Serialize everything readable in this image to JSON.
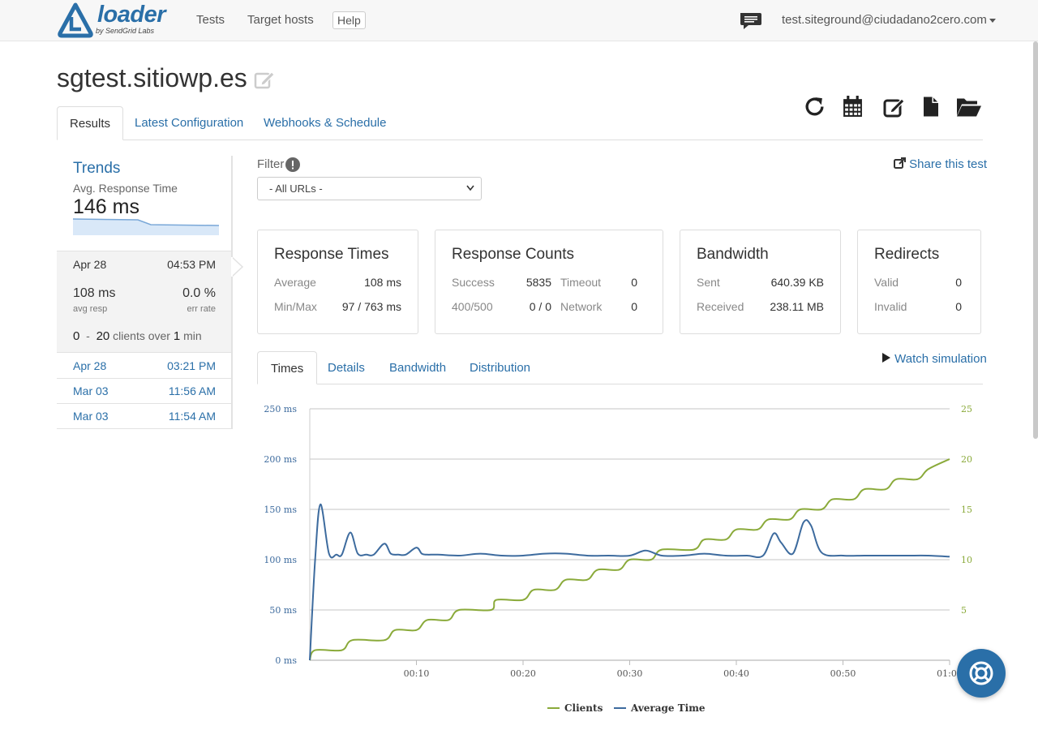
{
  "header": {
    "brand": "loader",
    "brand_tagline": "by SendGrid Labs",
    "nav": [
      "Tests",
      "Target hosts"
    ],
    "help_label": "Help",
    "user_email": "test.siteground@ciudadano2cero.com"
  },
  "page": {
    "title": "sgtest.sitiowp.es",
    "tabs": [
      {
        "label": "Results",
        "active": true
      },
      {
        "label": "Latest Configuration",
        "active": false
      },
      {
        "label": "Webhooks & Schedule",
        "active": false
      }
    ],
    "toolbar_icons": [
      "refresh-icon",
      "calendar-icon",
      "edit-icon",
      "file-icon",
      "folder-open-icon"
    ]
  },
  "trends": {
    "title": "Trends",
    "subtitle": "Avg. Response Time",
    "value": "146 ms"
  },
  "runs": {
    "active": {
      "date": "Apr 28",
      "time": "04:53 PM",
      "avg_resp": "108 ms",
      "avg_resp_label": "avg resp",
      "err_rate": "0.0 %",
      "err_rate_label": "err rate",
      "clients_from": "0",
      "clients_sep": "-",
      "clients_to": "20",
      "clients_over": "clients over",
      "duration": "1",
      "duration_unit": "min"
    },
    "others": [
      {
        "date": "Apr 28",
        "time": "03:21 PM"
      },
      {
        "date": "Mar 03",
        "time": "11:56 AM"
      },
      {
        "date": "Mar 03",
        "time": "11:54 AM"
      }
    ]
  },
  "filter": {
    "label": "Filter",
    "selected": "- All URLs -",
    "share_label": "Share this test"
  },
  "cards": {
    "response_times": {
      "title": "Response Times",
      "average_label": "Average",
      "average": "108 ms",
      "minmax_label": "Min/Max",
      "minmax": "97 / 763 ms"
    },
    "response_counts": {
      "title": "Response Counts",
      "success_label": "Success",
      "success": "5835",
      "timeout_label": "Timeout",
      "timeout": "0",
      "errors_label": "400/500",
      "errors": "0 / 0",
      "network_label": "Network",
      "network": "0"
    },
    "bandwidth": {
      "title": "Bandwidth",
      "sent_label": "Sent",
      "sent": "640.39 KB",
      "received_label": "Received",
      "received": "238.11 MB"
    },
    "redirects": {
      "title": "Redirects",
      "valid_label": "Valid",
      "valid": "0",
      "invalid_label": "Invalid",
      "invalid": "0"
    }
  },
  "chart_tabs": [
    {
      "label": "Times",
      "active": true
    },
    {
      "label": "Details",
      "active": false
    },
    {
      "label": "Bandwidth",
      "active": false
    },
    {
      "label": "Distribution",
      "active": false
    }
  ],
  "watch_label": "Watch simulation",
  "colors": {
    "link": "#2a6fa8",
    "clients": "#8aaa3a",
    "avg_time": "#3d6b9e",
    "help_bubble": "#2a6fa8"
  },
  "chart_data": {
    "type": "line",
    "x_ticks": [
      "00:10",
      "00:20",
      "00:30",
      "00:40",
      "00:50",
      "01:00"
    ],
    "x_range": [
      0,
      60
    ],
    "y_left_ticks": [
      "0 ms",
      "50 ms",
      "100 ms",
      "150 ms",
      "200 ms",
      "250 ms"
    ],
    "y_left_range": [
      0,
      250
    ],
    "y_right_ticks": [
      "5",
      "10",
      "15",
      "20",
      "25"
    ],
    "y_right_range": [
      0,
      25
    ],
    "grid": true,
    "legend": "bottom",
    "series": [
      {
        "name": "Clients",
        "axis": "right",
        "x": [
          0,
          0.5,
          3,
          4,
          7,
          8,
          10,
          11,
          13,
          14,
          17,
          17.5,
          20,
          21,
          23,
          24,
          26,
          27,
          29,
          30,
          32,
          33,
          36,
          37,
          39,
          40,
          42,
          43,
          45,
          46,
          48,
          49,
          51,
          52,
          54,
          55,
          57,
          58,
          60
        ],
        "y": [
          0,
          1,
          1,
          2,
          2,
          3,
          3,
          4,
          4,
          5,
          5,
          6,
          6,
          7,
          7,
          8,
          8,
          9,
          9,
          10,
          10,
          11,
          11,
          12,
          12,
          13,
          13,
          14,
          14,
          15,
          15,
          16,
          16,
          17,
          17,
          18,
          18,
          19,
          20
        ]
      },
      {
        "name": "Average Time",
        "axis": "left",
        "x": [
          0,
          0.5,
          1,
          1.8,
          2.5,
          3,
          3.8,
          4.5,
          5.3,
          6,
          7,
          7.6,
          8.3,
          9,
          10,
          10.5,
          11,
          12,
          14,
          16,
          18,
          20,
          22,
          24,
          26,
          28,
          30,
          31.5,
          33,
          35,
          37,
          39,
          41,
          42.5,
          43.5,
          44.2,
          45.3,
          46.3,
          47,
          48,
          50,
          52,
          54,
          56,
          58,
          60
        ],
        "y": [
          0,
          100,
          155,
          106,
          105,
          105,
          127,
          106,
          105,
          105,
          116,
          106,
          105,
          105,
          112,
          106,
          105,
          105,
          104,
          106,
          104,
          104,
          106,
          106,
          104,
          104,
          104,
          109,
          104,
          104,
          106,
          104,
          104,
          104,
          126,
          117,
          106,
          137,
          134,
          107,
          104,
          104,
          104,
          104,
          104,
          103
        ]
      }
    ]
  }
}
